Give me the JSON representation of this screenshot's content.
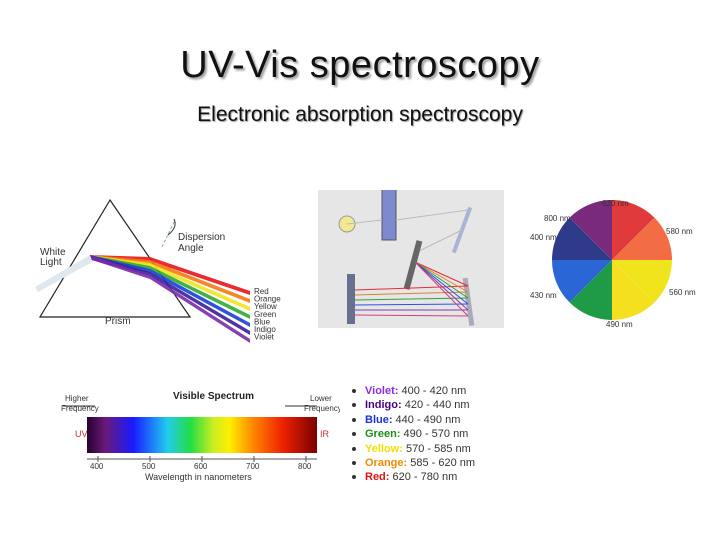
{
  "title": "UV-Vis spectroscopy",
  "subtitle": "Electronic absorption spectroscopy",
  "prism": {
    "white_light": "White",
    "light": "Light",
    "dispersion": "Dispersion",
    "angle": "Angle",
    "prism_label": "Prism",
    "colors": [
      "Red",
      "Orange",
      "Yellow",
      "Green",
      "Blue",
      "Indigo",
      "Violet"
    ],
    "ray_colors": [
      "#e8141c",
      "#f47a12",
      "#f2e31a",
      "#2ea836",
      "#1b3fd8",
      "#3a1f9a",
      "#7a2aa8"
    ]
  },
  "color_wheel": {
    "labels": [
      "620 nm",
      "580 nm",
      "560 nm",
      "490 nm",
      "430 nm",
      "400 nm",
      "800 nm"
    ],
    "segments": [
      {
        "color": "#e03a3a"
      },
      {
        "color": "#f26c44"
      },
      {
        "color": "#f0e41c"
      },
      {
        "color": "#f5e020"
      },
      {
        "color": "#1f9a46"
      },
      {
        "color": "#2b66d6"
      },
      {
        "color": "#2e3a8a"
      },
      {
        "color": "#7a2a7a"
      }
    ]
  },
  "spectrum": {
    "title": "Visible Spectrum",
    "higher_1": "Higher",
    "higher_2": "Frequency",
    "lower_1": "Lower",
    "lower_2": "Frequency",
    "uv": "UV",
    "ir": "IR",
    "ticks": [
      "400",
      "500",
      "600",
      "700",
      "800"
    ],
    "xlabel": "Wavelength in nanometers"
  },
  "ranges": [
    {
      "name": "Violet:",
      "range": "400 - 420 nm",
      "color": "#8a2be2"
    },
    {
      "name": "Indigo:",
      "range": "420 - 440 nm",
      "color": "#4b0082"
    },
    {
      "name": "Blue:",
      "range": "440 - 490 nm",
      "color": "#1c2fd6"
    },
    {
      "name": "Green:",
      "range": "490 - 570 nm",
      "color": "#1a8f1a"
    },
    {
      "name": "Yellow:",
      "range": "570 - 585 nm",
      "color": "#f0e000"
    },
    {
      "name": "Orange:",
      "range": "585 - 620 nm",
      "color": "#f08a00"
    },
    {
      "name": "Red:",
      "range": "620 - 780 nm",
      "color": "#e01010"
    }
  ]
}
